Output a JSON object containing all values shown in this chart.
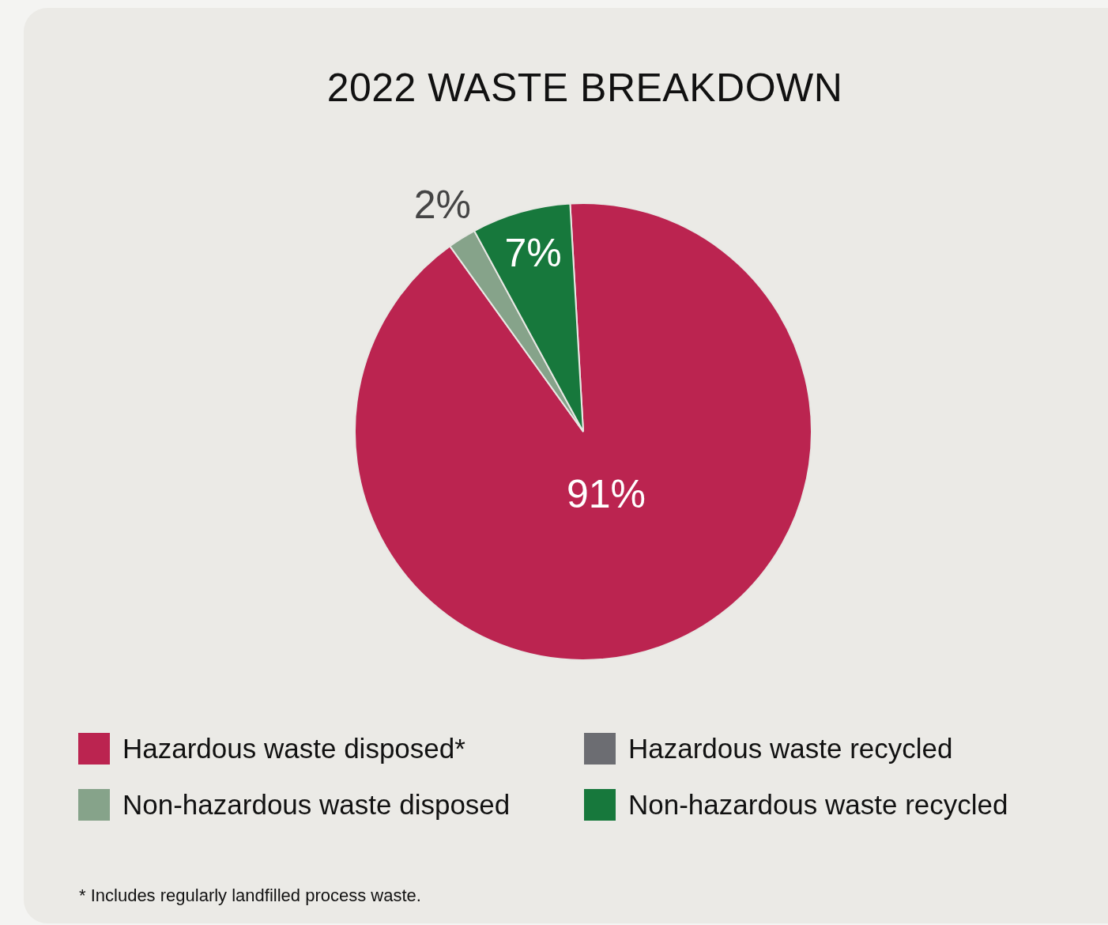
{
  "chart_data": {
    "type": "pie",
    "title": "2022 WASTE BREAKDOWN",
    "categories": [
      "Hazardous waste disposed*",
      "Hazardous waste recycled",
      "Non-hazardous waste disposed",
      "Non-hazardous waste recycled"
    ],
    "values": [
      91,
      0,
      2,
      7
    ],
    "colors": [
      "#bb2450",
      "#6c6d72",
      "#86a38a",
      "#17783c"
    ],
    "value_labels": [
      "91%",
      null,
      "2%",
      "7%"
    ],
    "legend": "bottom",
    "annotations": [
      "* Includes regularly landfilled process waste."
    ]
  }
}
